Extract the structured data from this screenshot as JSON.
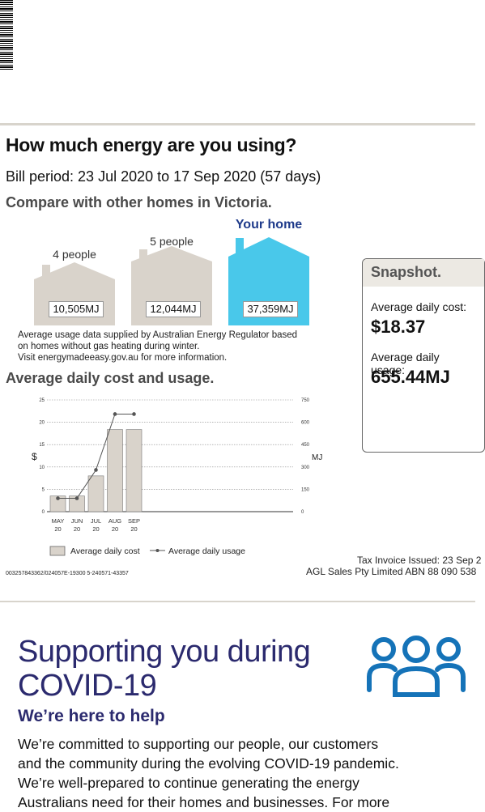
{
  "header": {
    "title": "How much energy are you using?"
  },
  "bill_period": "Bill period: 23 Jul 2020 to 17 Sep 2020 (57 days)",
  "compare": {
    "title": "Compare with other homes in Victoria.",
    "homes": [
      {
        "label": "4 people",
        "value": "10,505MJ",
        "color": "#d9d3cb"
      },
      {
        "label": "5 people",
        "value": "12,044MJ",
        "color": "#d9d3cb"
      },
      {
        "label": "Your home",
        "value": "37,359MJ",
        "color": "#49c8ea"
      }
    ],
    "note_lines": [
      "Average usage data supplied by Australian Energy Regulator based",
      "on homes without gas heating during winter.",
      "Visit energymadeeasy.gov.au for more information."
    ]
  },
  "snapshot": {
    "title": "Snapshot.",
    "cost_label": "Average daily cost:",
    "cost_value": "$18.37",
    "usage_label": "Average daily usage:",
    "usage_value": "655.44MJ"
  },
  "chart_title": "Average daily cost and usage.",
  "chart_data": {
    "type": "bar",
    "categories": [
      "MAY 20",
      "JUN 20",
      "JUL 20",
      "AUG 20",
      "SEP 20"
    ],
    "category_lines": [
      [
        "MAY",
        "20"
      ],
      [
        "JUN",
        "20"
      ],
      [
        "JUL",
        "20"
      ],
      [
        "AUG",
        "20"
      ],
      [
        "SEP",
        "20"
      ]
    ],
    "series": [
      {
        "name": "Average daily cost",
        "type": "bar",
        "axis": "left",
        "values": [
          3.5,
          3.5,
          8,
          18.37,
          18.37
        ],
        "color": "#d9d3cb"
      },
      {
        "name": "Average daily usage",
        "type": "line",
        "axis": "right",
        "values": [
          90,
          90,
          280,
          655,
          655
        ],
        "color": "#555555"
      }
    ],
    "ylabel": "$",
    "y2label": "MJ",
    "ylim": [
      0,
      25
    ],
    "y2lim": [
      0,
      750
    ],
    "yticks": [
      0,
      5,
      10,
      15,
      20,
      25
    ],
    "y2ticks": [
      0,
      150,
      300,
      450,
      600,
      750
    ],
    "grid": true,
    "legend_position": "bottom"
  },
  "tax": {
    "line1": "Tax Invoice Issued: 23 Sep 2",
    "line2": "AGL Sales Pty Limited ABN 88 090 538"
  },
  "reference": "003257843362/024057E-19300 5-240571-43357",
  "covid": {
    "title_line1": "Supporting you during",
    "title_line2": "COVID-19",
    "subtitle": "We’re here to help",
    "body_lines": [
      "We’re committed to supporting our people, our customers",
      "and the community during the evolving COVID-19 pandemic.",
      "We’re well-prepared to continue generating the energy",
      "Australians need for their homes and businesses. For more"
    ],
    "icon": "people-group-icon",
    "icon_color": "#1573b8"
  }
}
